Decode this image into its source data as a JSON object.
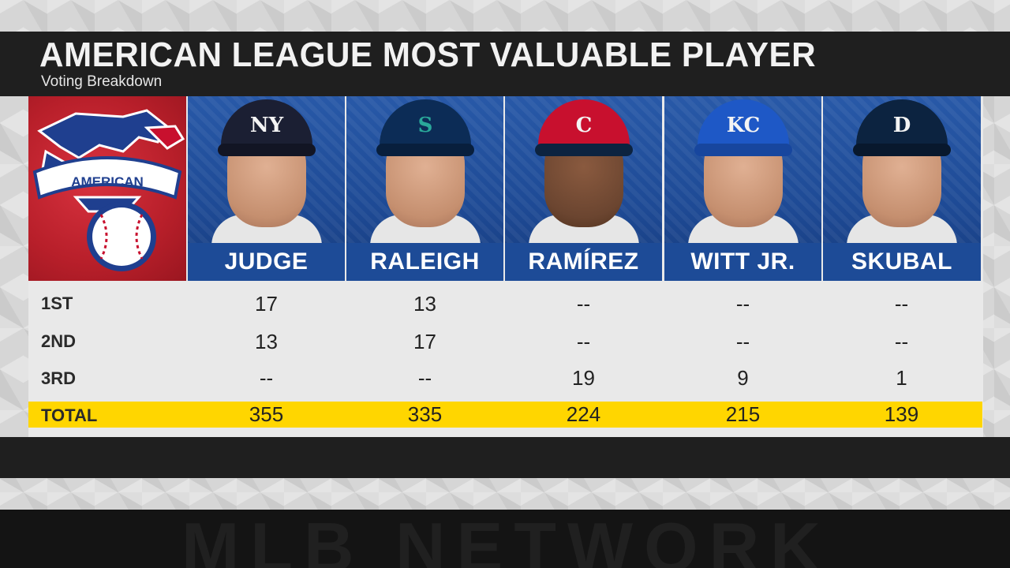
{
  "header": {
    "title": "American League Most Valuable Player",
    "subtitle": "Voting Breakdown"
  },
  "logo": {
    "text": "AMERICAN",
    "icon": "american-league-eagle-logo"
  },
  "players": [
    {
      "name": "JUDGE",
      "cap_logo": "NY",
      "cap_color": "#1b1f33"
    },
    {
      "name": "RALEIGH",
      "cap_logo": "S",
      "cap_color": "#0c2c56"
    },
    {
      "name": "RAMÍREZ",
      "cap_logo": "C",
      "cap_color": "#c8102e"
    },
    {
      "name": "WITT JR.",
      "cap_logo": "KC",
      "cap_color": "#1e58c6"
    },
    {
      "name": "SKUBAL",
      "cap_logo": "D",
      "cap_color": "#0c2340"
    }
  ],
  "rows": [
    {
      "label": "1st",
      "values": [
        "17",
        "13",
        "--",
        "--",
        "--"
      ]
    },
    {
      "label": "2nd",
      "values": [
        "13",
        "17",
        "--",
        "--",
        "--"
      ]
    },
    {
      "label": "3rd",
      "values": [
        "--",
        "--",
        "19",
        "9",
        "1"
      ]
    },
    {
      "label": "Total",
      "values": [
        "355",
        "335",
        "224",
        "215",
        "139"
      ]
    }
  ],
  "colors": {
    "header_bg": "#1f1f1f",
    "player_bg": "#1d4b97",
    "logo_bg": "#b81f2a",
    "total_highlight": "#ffd600"
  },
  "footer": {
    "watermark": "MLB NETWORK"
  }
}
